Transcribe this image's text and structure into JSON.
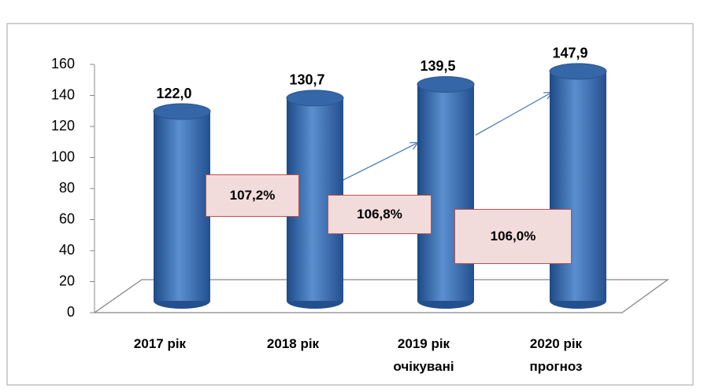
{
  "chart_data": {
    "type": "bar",
    "categories": [
      "2017 рік",
      "2018 рік",
      "2019 рік\nочікувані",
      "2020 рік\nпрогноз"
    ],
    "values": [
      122.0,
      130.7,
      139.5,
      147.9
    ],
    "value_labels": [
      "122,0",
      "130,7",
      "139,5",
      "147,9"
    ],
    "color": "#4f81bd",
    "annotations": [
      "107,2%",
      "106,8%",
      "106,0%"
    ],
    "ylim": [
      0,
      160
    ],
    "yticks": [
      0,
      20,
      40,
      60,
      80,
      100,
      120,
      140,
      160
    ],
    "grid": false
  }
}
